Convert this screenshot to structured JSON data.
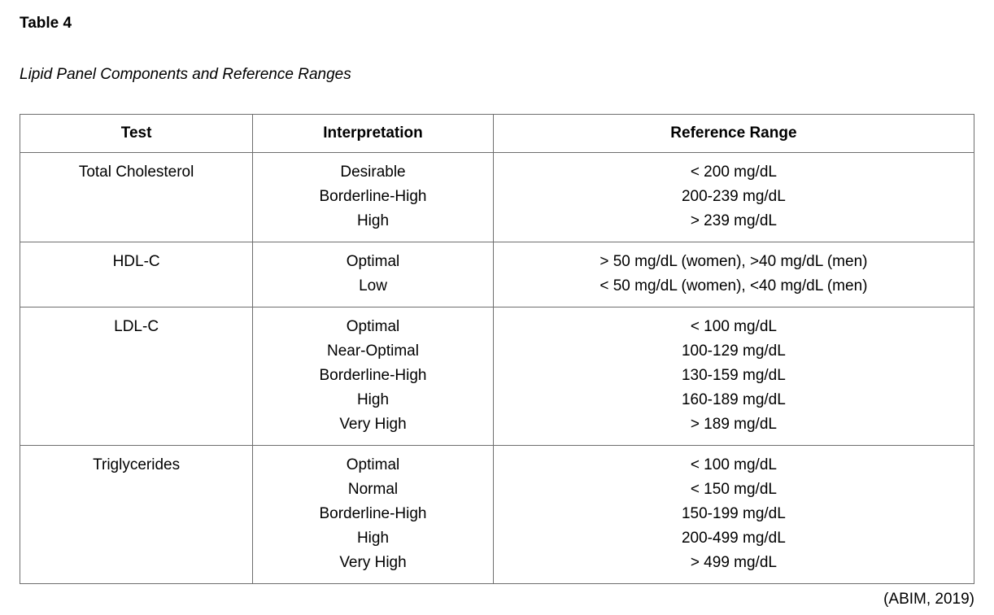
{
  "page": {
    "table_label": "Table 4",
    "caption": "Lipid Panel Components and Reference Ranges",
    "citation": "(ABIM, 2019)"
  },
  "table": {
    "headers": [
      "Test",
      "Interpretation",
      "Reference Range"
    ],
    "rows": [
      {
        "test": "Total Cholesterol",
        "interpretations": [
          "Desirable",
          "Borderline-High",
          "High"
        ],
        "ranges": [
          "< 200 mg/dL",
          "200-239 mg/dL",
          "> 239 mg/dL"
        ]
      },
      {
        "test": "HDL-C",
        "interpretations": [
          "Optimal",
          "Low"
        ],
        "ranges": [
          "> 50 mg/dL (women), >40 mg/dL (men)",
          "< 50 mg/dL (women), <40 mg/dL (men)"
        ]
      },
      {
        "test": "LDL-C",
        "interpretations": [
          "Optimal",
          "Near-Optimal",
          "Borderline-High",
          "High",
          "Very High"
        ],
        "ranges": [
          "< 100 mg/dL",
          "100-129 mg/dL",
          "130-159 mg/dL",
          "160-189 mg/dL",
          "> 189 mg/dL"
        ]
      },
      {
        "test": "Triglycerides",
        "interpretations": [
          "Optimal",
          "Normal",
          "Borderline-High",
          "High",
          "Very High"
        ],
        "ranges": [
          "< 100 mg/dL",
          "< 150 mg/dL",
          "150-199 mg/dL",
          "200-499 mg/dL",
          "> 499 mg/dL"
        ]
      }
    ]
  }
}
